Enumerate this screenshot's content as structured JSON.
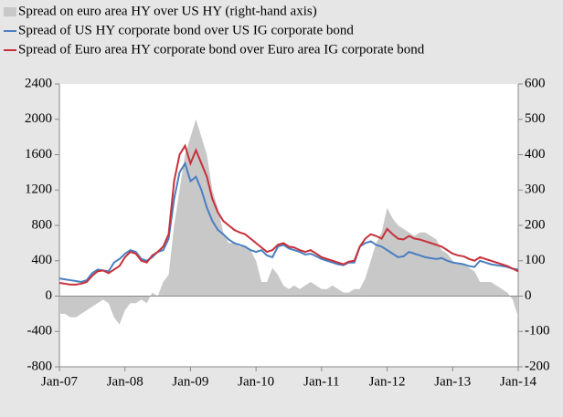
{
  "chart_data": {
    "type": "line",
    "categories": [
      "Jan-07",
      null,
      null,
      null,
      null,
      null,
      null,
      null,
      null,
      null,
      null,
      null,
      "Jan-08",
      null,
      null,
      null,
      null,
      null,
      null,
      null,
      null,
      null,
      null,
      null,
      "Jan-09",
      null,
      null,
      null,
      null,
      null,
      null,
      null,
      null,
      null,
      null,
      null,
      "Jan-10",
      null,
      null,
      null,
      null,
      null,
      null,
      null,
      null,
      null,
      null,
      null,
      "Jan-11",
      null,
      null,
      null,
      null,
      null,
      null,
      null,
      null,
      null,
      null,
      null,
      "Jan-12",
      null,
      null,
      null,
      null,
      null,
      null,
      null,
      null,
      null,
      null,
      null,
      "Jan-13",
      null,
      null,
      null,
      null,
      null,
      null,
      null,
      null,
      null,
      null,
      null,
      "Jan-14"
    ],
    "series": [
      {
        "name": "Spread on euro area HY over US HY (right-hand axis)",
        "color": "#c8c8c8",
        "axis": "y2",
        "kind": "area",
        "values": [
          -50,
          -50,
          -60,
          -60,
          -50,
          -40,
          -30,
          -20,
          -10,
          -20,
          -60,
          -80,
          -40,
          -20,
          -20,
          -10,
          -20,
          10,
          0,
          40,
          60,
          200,
          300,
          400,
          450,
          500,
          450,
          400,
          300,
          250,
          180,
          150,
          150,
          140,
          140,
          130,
          100,
          40,
          40,
          80,
          60,
          30,
          20,
          30,
          20,
          30,
          40,
          30,
          20,
          20,
          30,
          20,
          10,
          10,
          20,
          20,
          50,
          100,
          150,
          180,
          250,
          220,
          200,
          190,
          180,
          170,
          180,
          180,
          170,
          160,
          130,
          120,
          100,
          90,
          90,
          80,
          70,
          40,
          40,
          40,
          30,
          20,
          10,
          -10,
          -60
        ]
      },
      {
        "name": "Spread of US HY corporate bond over US IG corporate bond",
        "color": "#4a7fc1",
        "values": [
          200,
          190,
          180,
          170,
          160,
          180,
          260,
          300,
          290,
          280,
          380,
          420,
          480,
          520,
          500,
          420,
          400,
          440,
          500,
          520,
          650,
          1100,
          1400,
          1500,
          1300,
          1350,
          1200,
          1000,
          850,
          750,
          700,
          640,
          600,
          580,
          560,
          520,
          500,
          520,
          460,
          440,
          560,
          580,
          540,
          520,
          500,
          470,
          480,
          450,
          420,
          400,
          380,
          360,
          350,
          380,
          380,
          560,
          600,
          620,
          580,
          560,
          520,
          480,
          440,
          450,
          500,
          480,
          460,
          440,
          430,
          420,
          430,
          400,
          380,
          370,
          360,
          340,
          330,
          400,
          380,
          360,
          350,
          340,
          330,
          310,
          300
        ]
      },
      {
        "name": "Spread of Euro area HY corporate bond over Euro area IG corporate bond",
        "color": "#c8303a",
        "values": [
          150,
          140,
          130,
          130,
          140,
          160,
          230,
          280,
          290,
          260,
          300,
          340,
          440,
          500,
          480,
          400,
          380,
          460,
          500,
          560,
          700,
          1300,
          1600,
          1700,
          1500,
          1650,
          1500,
          1350,
          1100,
          950,
          850,
          800,
          750,
          720,
          700,
          650,
          600,
          550,
          500,
          520,
          580,
          600,
          560,
          550,
          520,
          500,
          520,
          480,
          440,
          420,
          400,
          380,
          360,
          390,
          400,
          560,
          650,
          700,
          680,
          650,
          760,
          700,
          650,
          640,
          680,
          650,
          640,
          620,
          600,
          580,
          560,
          520,
          480,
          460,
          450,
          420,
          400,
          440,
          420,
          400,
          380,
          360,
          340,
          310,
          280
        ]
      }
    ],
    "ylim": [
      -800,
      2400
    ],
    "yticks": [
      2400,
      2000,
      1600,
      1200,
      800,
      400,
      0,
      -400,
      -800
    ],
    "y2lim": [
      -200,
      600
    ],
    "y2ticks": [
      600,
      500,
      400,
      300,
      200,
      100,
      0,
      -100,
      -200
    ]
  }
}
